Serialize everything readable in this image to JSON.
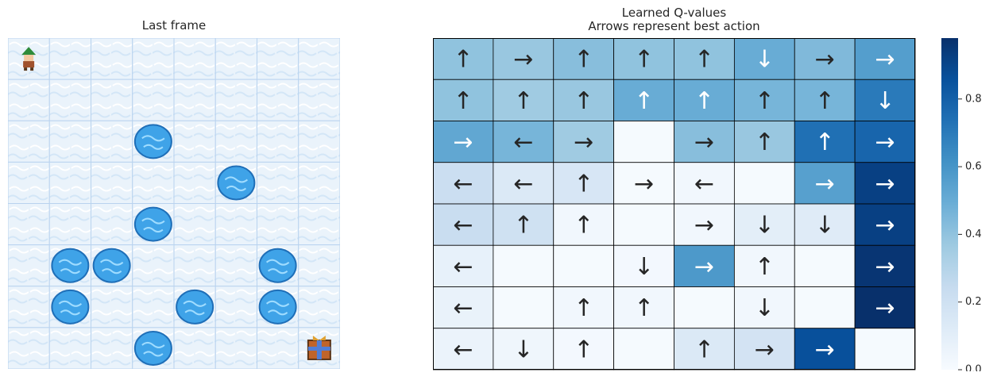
{
  "left_panel": {
    "title": "Last frame"
  },
  "frame": {
    "rows": 8,
    "cols": 8,
    "agent_cell": [
      0,
      0
    ],
    "goal_cell": [
      7,
      7
    ],
    "holes": [
      [
        2,
        3
      ],
      [
        3,
        5
      ],
      [
        4,
        3
      ],
      [
        5,
        1
      ],
      [
        5,
        2
      ],
      [
        5,
        6
      ],
      [
        6,
        1
      ],
      [
        6,
        4
      ],
      [
        6,
        6
      ],
      [
        7,
        3
      ]
    ],
    "icons": {
      "agent": "elf-agent-icon",
      "goal": "gift-goal-icon",
      "hole": "ice-hole-icon"
    },
    "colors": {
      "ice": "#eaf3fb",
      "grid": "#b9d3ef",
      "hole": "#3fa3e8"
    }
  },
  "right_panel": {
    "title_line1": "Learned Q-values",
    "title_line2": "Arrows represent best action"
  },
  "chart_data": {
    "type": "heatmap",
    "title": "Learned Q-values\nArrows represent best action",
    "xlabel": "",
    "ylabel": "",
    "rows": 8,
    "cols": 8,
    "values": [
      [
        0.4,
        0.38,
        0.42,
        0.4,
        0.4,
        0.5,
        0.44,
        0.56
      ],
      [
        0.4,
        0.36,
        0.38,
        0.5,
        0.5,
        0.46,
        0.46,
        0.7
      ],
      [
        0.52,
        0.46,
        0.36,
        0.01,
        0.42,
        0.38,
        0.74,
        0.78
      ],
      [
        0.22,
        0.14,
        0.16,
        0.01,
        0.03,
        0.01,
        0.55,
        0.92
      ],
      [
        0.23,
        0.2,
        0.03,
        0.01,
        0.03,
        0.1,
        0.12,
        0.92
      ],
      [
        0.08,
        0.01,
        0.01,
        0.02,
        0.58,
        0.03,
        0.01,
        0.96
      ],
      [
        0.07,
        0.01,
        0.03,
        0.03,
        0.01,
        0.03,
        0.01,
        0.98
      ],
      [
        0.06,
        0.04,
        0.02,
        0.01,
        0.14,
        0.18,
        0.86,
        0.01
      ]
    ],
    "arrows": [
      [
        "↑",
        "→",
        "↑",
        "↑",
        "↑",
        "↓",
        "→",
        "→"
      ],
      [
        "↑",
        "↑",
        "↑",
        "↑",
        "↑",
        "↑",
        "↑",
        "↓"
      ],
      [
        "→",
        "←",
        "→",
        "",
        "→",
        "↑",
        "↑",
        "→"
      ],
      [
        "←",
        "←",
        "↑",
        "→",
        "←",
        "",
        "→",
        "→"
      ],
      [
        "←",
        "↑",
        "↑",
        "",
        "→",
        "↓",
        "↓",
        "→"
      ],
      [
        "←",
        "",
        "",
        "↓",
        "→",
        "↑",
        "",
        "→"
      ],
      [
        "←",
        "",
        "↑",
        "↑",
        "",
        "↓",
        "",
        "→"
      ],
      [
        "←",
        "↓",
        "↑",
        "",
        "↑",
        "→",
        "→",
        ""
      ]
    ],
    "colormap": "Blues",
    "vmin": 0.0,
    "vmax": 0.98,
    "colorbar": {
      "ticks": [
        "0.0",
        "0.2",
        "0.4",
        "0.6",
        "0.8"
      ],
      "tick_values": [
        0.0,
        0.2,
        0.4,
        0.6,
        0.8
      ]
    }
  }
}
